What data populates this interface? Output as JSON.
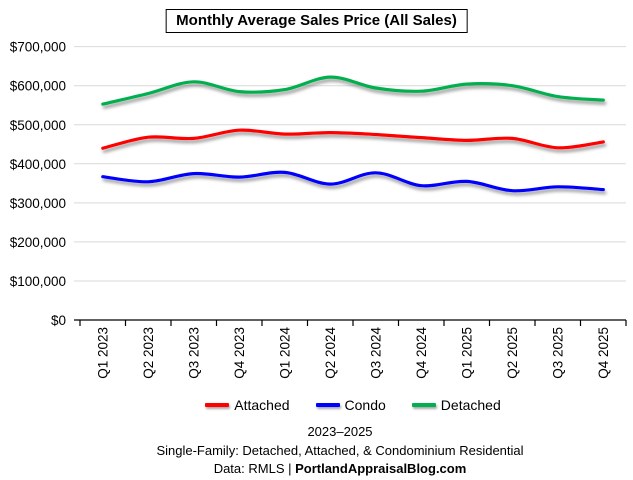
{
  "title": "Monthly Average Sales Price (All Sales)",
  "chart_data": {
    "type": "line",
    "smoothed": true,
    "grid": true,
    "legend_position": "bottom",
    "categories": [
      "Q1 2023",
      "Q2 2023",
      "Q3 2023",
      "Q4 2023",
      "Q1 2024",
      "Q2 2024",
      "Q3 2024",
      "Q4 2024",
      "Q1 2025",
      "Q2 2025",
      "Q3 2025",
      "Q4 2025"
    ],
    "series": [
      {
        "name": "Attached",
        "color": "#FF0000",
        "values": [
          440000,
          468000,
          465000,
          486000,
          476000,
          480000,
          475000,
          467000,
          460000,
          465000,
          441000,
          456000
        ]
      },
      {
        "name": "Condo",
        "color": "#0000FF",
        "values": [
          367000,
          354000,
          375000,
          366000,
          378000,
          348000,
          377000,
          344000,
          355000,
          331000,
          341000,
          334000
        ]
      },
      {
        "name": "Detached",
        "color": "#00B050",
        "values": [
          553000,
          580000,
          610000,
          585000,
          590000,
          622000,
          594000,
          586000,
          604000,
          600000,
          572000,
          563000
        ]
      }
    ],
    "ylim": [
      0,
      700000
    ],
    "ytick_interval": 100000,
    "ytick_labels": [
      "$0",
      "$100,000",
      "$200,000",
      "$300,000",
      "$400,000",
      "$500,000",
      "$600,000",
      "$700,000"
    ],
    "gridline_color": "#D9D9D9",
    "axis_color": "#000000"
  },
  "footer": {
    "line1": "2023–2025",
    "line2": "Single-Family: Detached, Attached, & Condominium Residential",
    "line3_prefix": "Data: RMLS | ",
    "line3_bold": "PortlandAppraisalBlog.com"
  }
}
